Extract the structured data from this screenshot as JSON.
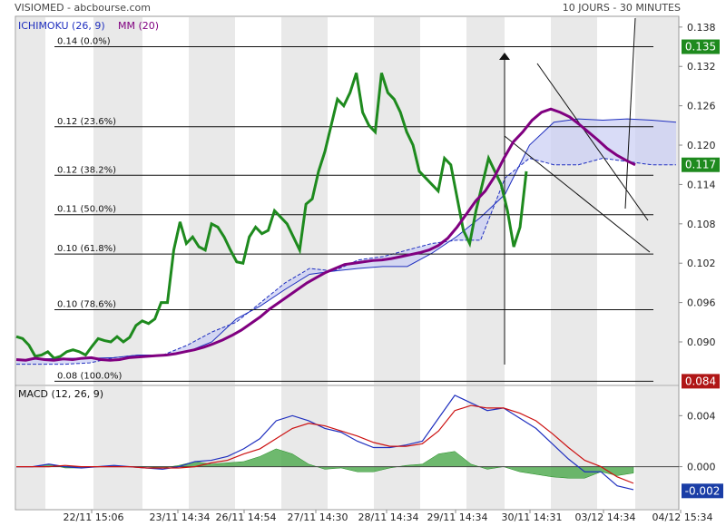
{
  "header": {
    "left": "VISIOMED - abcbourse.com",
    "right": "10 JOURS - 30 MINUTES"
  },
  "colors": {
    "bg_stripe": "#e9e9e9",
    "ichimoku_blue": "#1f2fbf",
    "cloud": "#c9cdf3",
    "mm": "#800080",
    "green": "#1e8a1e",
    "red": "#cc1111",
    "last_price_bg": "#1e8a1e",
    "low_price_bg": "#b01616",
    "macd_bg": "#1a3da6",
    "macd_hist": "#4aa84a"
  },
  "chart_data": [
    {
      "type": "line",
      "title": "",
      "legend": [
        {
          "label": "ICHIMOKU (26, 9)",
          "color": "#1f2fbf"
        },
        {
          "label": "MM (20)",
          "color": "#800080"
        }
      ],
      "x_tick_labels": [
        "22/11 15:06",
        "23/11 14:34",
        "26/11 14:54",
        "27/11 14:30",
        "28/11 14:34",
        "29/11 14:34",
        "30/11 14:31",
        "03/12 14:34",
        "04/12 15:34"
      ],
      "y_ticks": [
        "0.138",
        "0.132",
        "0.126",
        "0.120",
        "0.114",
        "0.108",
        "0.102",
        "0.096",
        "0.090"
      ],
      "ylim": [
        0.0835,
        0.1395
      ],
      "price_labels": [
        {
          "value": "0.135",
          "num": 0.135,
          "kind": "high"
        },
        {
          "value": "0.117",
          "num": 0.117,
          "kind": "last"
        },
        {
          "value": "0.084",
          "num": 0.084,
          "kind": "low"
        }
      ],
      "fibonacci": [
        {
          "label": "0.14  (0.0%)",
          "value": 0.135
        },
        {
          "label": "0.12  (23.6%)",
          "value": 0.1228
        },
        {
          "label": "0.12  (38.2%)",
          "value": 0.1154
        },
        {
          "label": "0.11  (50.0%)",
          "value": 0.1094
        },
        {
          "label": "0.10  (61.8%)",
          "value": 0.1034
        },
        {
          "label": "0.10  (78.6%)",
          "value": 0.0949
        },
        {
          "label": "0.08  (100.0%)",
          "value": 0.084
        }
      ],
      "series": [
        {
          "role": "mm",
          "values": [
            0.0873,
            0.0872,
            0.0875,
            0.0873,
            0.0872,
            0.0874,
            0.0873,
            0.0875,
            0.0876,
            0.0873,
            0.0872,
            0.0873,
            0.0876,
            0.0877,
            0.0878,
            0.0879,
            0.088,
            0.0882,
            0.0885,
            0.0888,
            0.0892,
            0.0897,
            0.0903,
            0.091,
            0.0918,
            0.0928,
            0.0938,
            0.095,
            0.096,
            0.097,
            0.098,
            0.099,
            0.0998,
            0.1006,
            0.1012,
            0.1018,
            0.102,
            0.1022,
            0.1024,
            0.1025,
            0.1027,
            0.103,
            0.1033,
            0.1036,
            0.104,
            0.1047,
            0.1058,
            0.1075,
            0.1095,
            0.1115,
            0.113,
            0.1152,
            0.118,
            0.1205,
            0.122,
            0.1238,
            0.125,
            0.1255,
            0.125,
            0.1243,
            0.1232,
            0.122,
            0.1208,
            0.1195,
            0.1185,
            0.1177,
            0.117
          ]
        },
        {
          "role": "chikou",
          "values": [
            0.0908,
            0.0905,
            0.0895,
            0.0878,
            0.088,
            0.0885,
            0.0875,
            0.0878,
            0.0885,
            0.0888,
            0.0885,
            0.088,
            0.0893,
            0.0905,
            0.0902,
            0.09,
            0.0908,
            0.09,
            0.0907,
            0.0925,
            0.0932,
            0.0928,
            0.0935,
            0.096,
            0.096,
            0.104,
            0.1083,
            0.105,
            0.106,
            0.1045,
            0.104,
            0.108,
            0.1075,
            0.106,
            0.104,
            0.1022,
            0.102,
            0.106,
            0.1075,
            0.1065,
            0.107,
            0.11,
            0.109,
            0.108,
            0.106,
            0.104,
            0.111,
            0.1118,
            0.116,
            0.119,
            0.123,
            0.127,
            0.126,
            0.128,
            0.131,
            0.125,
            0.123,
            0.122,
            0.131,
            0.128,
            0.127,
            0.125,
            0.122,
            0.12,
            0.116,
            0.115,
            0.114,
            0.113,
            0.118,
            0.117,
            0.112,
            0.107,
            0.105,
            0.11,
            0.114,
            0.118,
            0.116,
            0.114,
            0.11,
            0.1045,
            0.1075,
            0.116
          ]
        },
        {
          "role": "kumo_a",
          "values": [
            0.0872,
            0.0874,
            0.0875,
            0.0875,
            0.0876,
            0.088,
            0.088,
            0.0885,
            0.09,
            0.0935,
            0.0955,
            0.098,
            0.1003,
            0.1008,
            0.1012,
            0.1015,
            0.1015,
            0.1035,
            0.106,
            0.109,
            0.1125,
            0.12,
            0.1235,
            0.124,
            0.1238,
            0.124,
            0.1238,
            0.1235
          ]
        },
        {
          "role": "kumo_b",
          "values": [
            0.0866,
            0.0866,
            0.0866,
            0.0868,
            0.0876,
            0.088,
            0.088,
            0.0895,
            0.0915,
            0.093,
            0.096,
            0.099,
            0.1012,
            0.1008,
            0.1025,
            0.103,
            0.104,
            0.105,
            0.1055,
            0.1055,
            0.115,
            0.118,
            0.117,
            0.117,
            0.118,
            0.1175,
            0.117,
            0.117
          ]
        }
      ]
    },
    {
      "type": "line",
      "title": "",
      "legend": [
        {
          "label": "MACD (12, 26, 9)",
          "color": "#1f2fbf"
        }
      ],
      "y_ticks": [
        "0.004",
        "0.000"
      ],
      "ylim": [
        -0.0033,
        0.0063
      ],
      "last_label": "-0.002",
      "series": [
        {
          "role": "macd",
          "values": [
            0.0,
            0.0,
            0.0002,
            0.0,
            -0.0001,
            0.0,
            0.0001,
            0.0,
            -0.0001,
            -0.0002,
            0.0,
            0.0004,
            0.0005,
            0.0008,
            0.0014,
            0.0022,
            0.0036,
            0.004,
            0.0036,
            0.003,
            0.0027,
            0.002,
            0.0015,
            0.0015,
            0.0017,
            0.002,
            0.0038,
            0.0056,
            0.005,
            0.0044,
            0.0046,
            0.0038,
            0.003,
            0.0018,
            0.0006,
            -0.0004,
            -0.0004,
            -0.0015,
            -0.0018
          ]
        },
        {
          "role": "signal",
          "values": [
            0.0,
            0.0,
            0.0,
            0.0001,
            0.0,
            0.0,
            0.0,
            0.0,
            -0.0001,
            -0.0001,
            -0.0001,
            0.0,
            0.0003,
            0.0005,
            0.001,
            0.0014,
            0.0022,
            0.003,
            0.0034,
            0.0032,
            0.0028,
            0.0024,
            0.0019,
            0.0016,
            0.0016,
            0.0018,
            0.0028,
            0.0044,
            0.0048,
            0.0046,
            0.0046,
            0.0042,
            0.0036,
            0.0026,
            0.0015,
            0.0005,
            0.0,
            -0.0008,
            -0.0013
          ]
        }
      ]
    }
  ]
}
